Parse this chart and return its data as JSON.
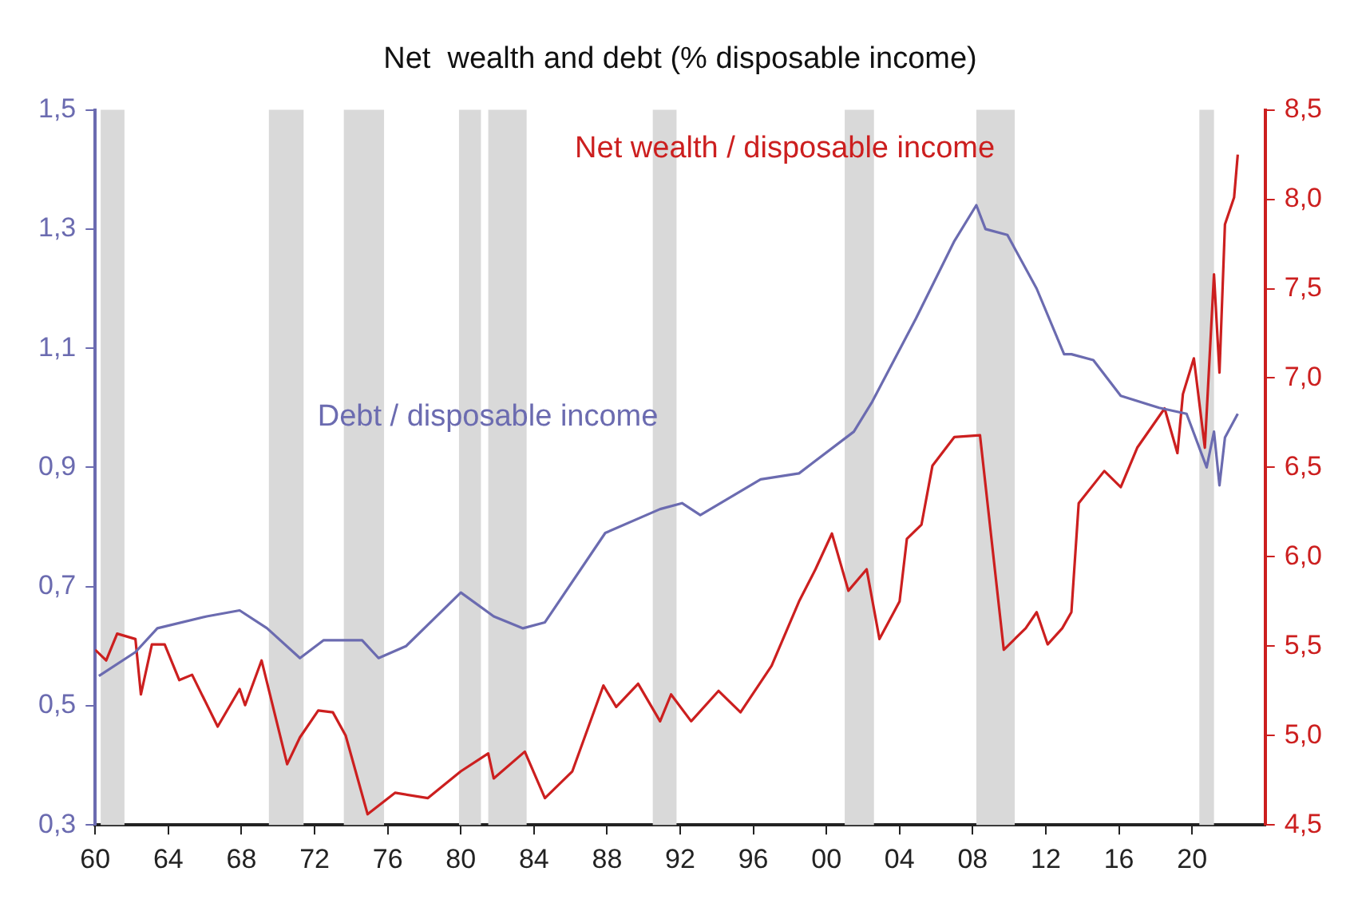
{
  "chart_data": {
    "type": "line",
    "title": "Net  wealth and debt (% disposable income)",
    "xlim": [
      1960,
      2024
    ],
    "xticks": [
      {
        "value": 1960,
        "label": "60"
      },
      {
        "value": 1964,
        "label": "64"
      },
      {
        "value": 1968,
        "label": "68"
      },
      {
        "value": 1972,
        "label": "72"
      },
      {
        "value": 1976,
        "label": "76"
      },
      {
        "value": 1980,
        "label": "80"
      },
      {
        "value": 1984,
        "label": "84"
      },
      {
        "value": 1988,
        "label": "88"
      },
      {
        "value": 1992,
        "label": "92"
      },
      {
        "value": 1996,
        "label": "96"
      },
      {
        "value": 2000,
        "label": "00"
      },
      {
        "value": 2004,
        "label": "04"
      },
      {
        "value": 2008,
        "label": "08"
      },
      {
        "value": 2012,
        "label": "12"
      },
      {
        "value": 2016,
        "label": "16"
      },
      {
        "value": 2020,
        "label": "20"
      }
    ],
    "ylim": [
      0.3,
      1.5
    ],
    "yticks": [
      {
        "value": 0.3,
        "label": "0,3"
      },
      {
        "value": 0.5,
        "label": "0,5"
      },
      {
        "value": 0.7,
        "label": "0,7"
      },
      {
        "value": 0.9,
        "label": "0,9"
      },
      {
        "value": 1.1,
        "label": "1,1"
      },
      {
        "value": 1.3,
        "label": "1,3"
      },
      {
        "value": 1.5,
        "label": "1,5"
      }
    ],
    "y2lim": [
      4.5,
      8.5
    ],
    "y2ticks": [
      {
        "value": 4.5,
        "label": "4,5"
      },
      {
        "value": 5.0,
        "label": "5,0"
      },
      {
        "value": 5.5,
        "label": "5,5"
      },
      {
        "value": 6.0,
        "label": "6,0"
      },
      {
        "value": 6.5,
        "label": "6,5"
      },
      {
        "value": 7.0,
        "label": "7,0"
      },
      {
        "value": 7.5,
        "label": "7,5"
      },
      {
        "value": 8.0,
        "label": "8,0"
      },
      {
        "value": 8.5,
        "label": "8,5"
      }
    ],
    "grid": false,
    "legend": false,
    "marker": "none",
    "line_style": "solid",
    "bands": [
      {
        "axis": "x",
        "from": 1960.3,
        "to": 1961.6,
        "color": "#d9d9d9"
      },
      {
        "axis": "x",
        "from": 1969.5,
        "to": 1971.4,
        "color": "#d9d9d9"
      },
      {
        "axis": "x",
        "from": 1973.6,
        "to": 1975.8,
        "color": "#d9d9d9"
      },
      {
        "axis": "x",
        "from": 1979.9,
        "to": 1981.1,
        "color": "#d9d9d9"
      },
      {
        "axis": "x",
        "from": 1981.5,
        "to": 1983.6,
        "color": "#d9d9d9"
      },
      {
        "axis": "x",
        "from": 1990.5,
        "to": 1991.8,
        "color": "#d9d9d9"
      },
      {
        "axis": "x",
        "from": 2001.0,
        "to": 2002.6,
        "color": "#d9d9d9"
      },
      {
        "axis": "x",
        "from": 2008.2,
        "to": 2010.3,
        "color": "#d9d9d9"
      },
      {
        "axis": "x",
        "from": 2020.4,
        "to": 2021.2,
        "color": "#d9d9d9"
      }
    ],
    "series": [
      {
        "name": "Debt / disposable income",
        "color": "#6b6bb0",
        "axis": "y",
        "x": [
          1960.2,
          1962.2,
          1963.4,
          1966.1,
          1967.9,
          1969.4,
          1971.2,
          1972.5,
          1974.6,
          1975.5,
          1977.0,
          1980.0,
          1981.8,
          1983.4,
          1984.6,
          1987.9,
          1990.9,
          1992.1,
          1993.1,
          1996.4,
          1998.5,
          2001.5,
          2002.5,
          2004.9,
          2007.0,
          2008.2,
          2008.7,
          2009.9,
          2011.5,
          2013.0,
          2013.4,
          2014.6,
          2016.1,
          2018.2,
          2019.7,
          2020.8,
          2021.2,
          2021.5,
          2021.8,
          2022.5
        ],
        "values": [
          0.55,
          0.59,
          0.63,
          0.65,
          0.66,
          0.63,
          0.58,
          0.61,
          0.61,
          0.58,
          0.6,
          0.69,
          0.65,
          0.63,
          0.64,
          0.79,
          0.83,
          0.84,
          0.82,
          0.88,
          0.89,
          0.96,
          1.01,
          1.15,
          1.28,
          1.34,
          1.3,
          1.29,
          1.2,
          1.09,
          1.09,
          1.08,
          1.02,
          1.0,
          0.99,
          0.9,
          0.96,
          0.87,
          0.95,
          0.99
        ]
      },
      {
        "name": "Net wealth / disposable income",
        "color": "#cc1f1f",
        "axis": "y2",
        "x": [
          1960.0,
          1960.6,
          1961.2,
          1962.2,
          1962.5,
          1963.1,
          1963.8,
          1964.6,
          1965.3,
          1966.7,
          1967.9,
          1968.2,
          1969.1,
          1970.5,
          1971.2,
          1972.2,
          1973.0,
          1973.7,
          1974.9,
          1976.4,
          1978.2,
          1980.0,
          1981.5,
          1981.8,
          1983.5,
          1984.6,
          1986.1,
          1987.8,
          1988.5,
          1989.7,
          1990.9,
          1991.5,
          1992.6,
          1994.1,
          1995.3,
          1997.0,
          1998.5,
          1999.4,
          2000.3,
          2001.2,
          2002.2,
          2002.9,
          2004.0,
          2004.4,
          2005.2,
          2005.8,
          2007.0,
          2008.4,
          2009.7,
          2010.9,
          2011.5,
          2012.1,
          2012.9,
          2013.4,
          2013.8,
          2015.2,
          2016.1,
          2017.0,
          2018.5,
          2019.2,
          2019.5,
          2020.1,
          2020.7,
          2021.2,
          2021.5,
          2021.8,
          2022.3,
          2022.5
        ],
        "values": [
          5.48,
          5.42,
          5.57,
          5.54,
          5.23,
          5.51,
          5.51,
          5.31,
          5.34,
          5.05,
          5.26,
          5.17,
          5.42,
          4.84,
          4.99,
          5.14,
          5.13,
          5.0,
          4.56,
          4.68,
          4.65,
          4.8,
          4.9,
          4.76,
          4.91,
          4.65,
          4.8,
          5.28,
          5.16,
          5.29,
          5.08,
          5.23,
          5.08,
          5.25,
          5.13,
          5.39,
          5.75,
          5.93,
          6.13,
          5.81,
          5.93,
          5.54,
          5.75,
          6.1,
          6.18,
          6.51,
          6.67,
          6.68,
          5.48,
          5.6,
          5.69,
          5.51,
          5.6,
          5.69,
          6.3,
          6.48,
          6.39,
          6.61,
          6.83,
          6.58,
          6.91,
          7.11,
          6.61,
          7.58,
          7.03,
          7.86,
          8.01,
          8.25
        ]
      }
    ]
  }
}
